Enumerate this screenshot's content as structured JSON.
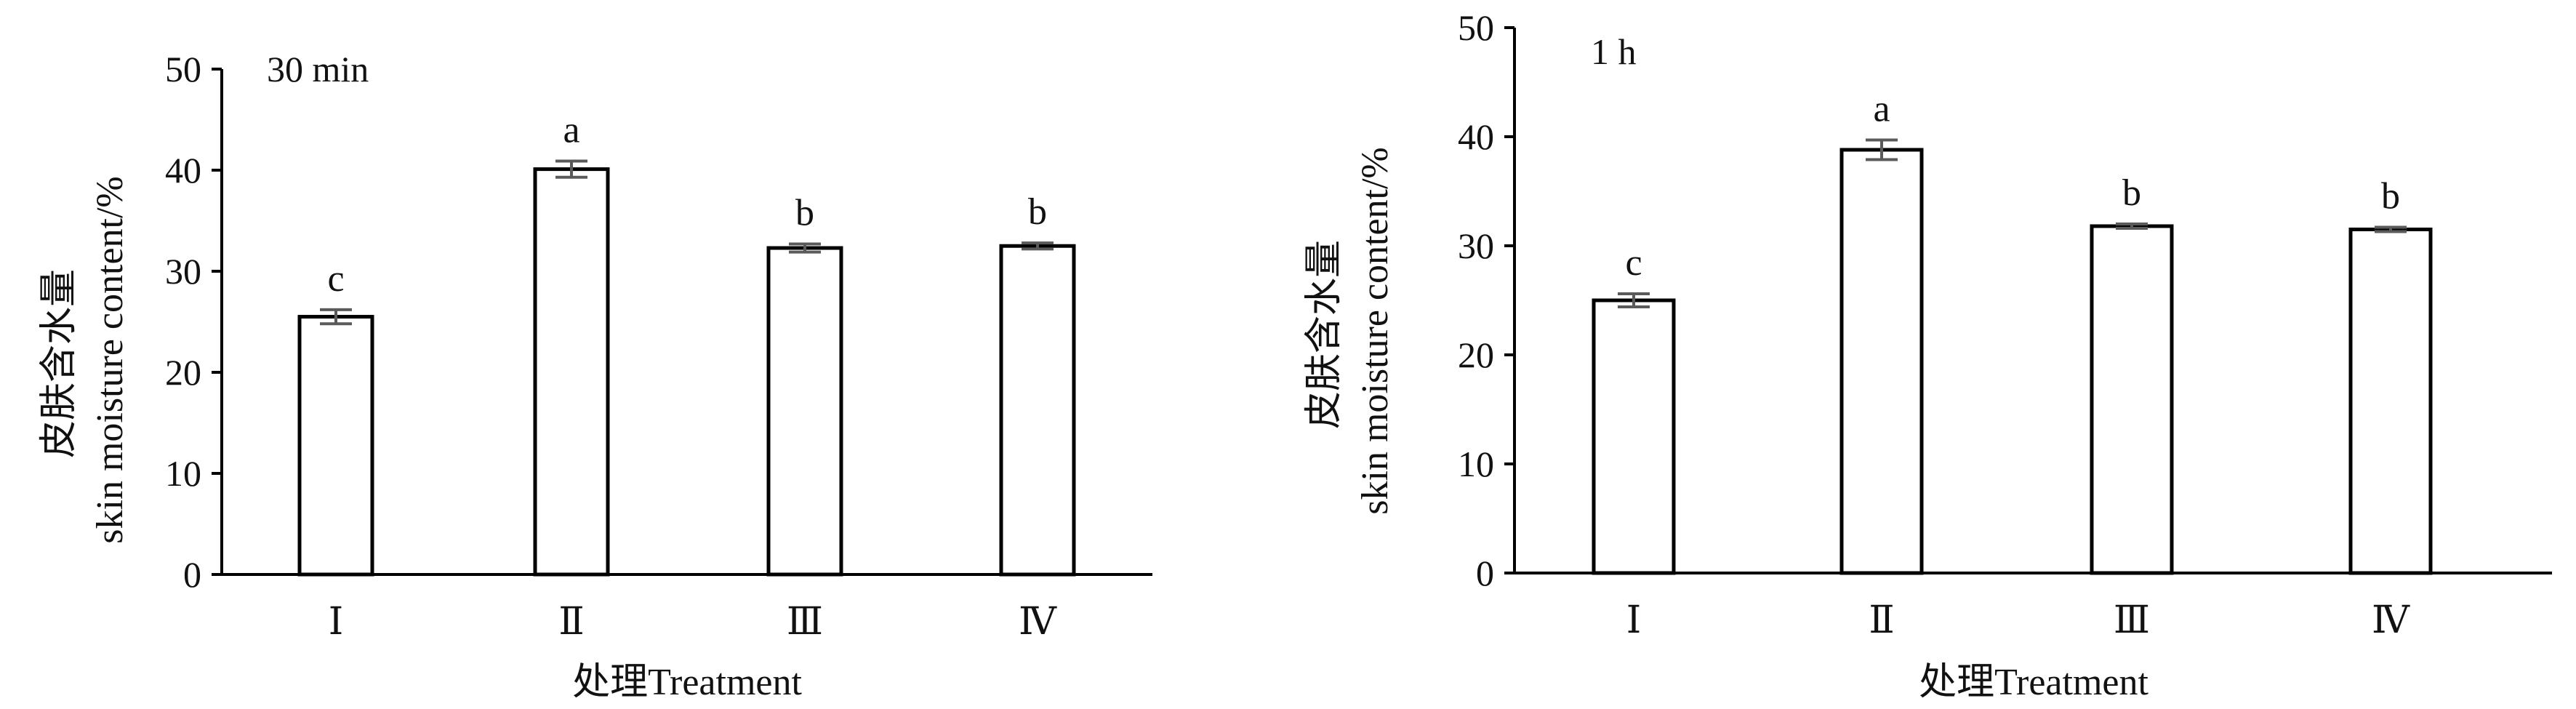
{
  "chart_data": [
    {
      "type": "bar",
      "panel_label": "30 min",
      "categories": [
        "Ⅰ",
        "Ⅱ",
        "Ⅲ",
        "Ⅳ"
      ],
      "values": [
        25.5,
        40.1,
        32.3,
        32.5
      ],
      "errors": [
        0.7,
        0.8,
        0.4,
        0.3
      ],
      "significance": [
        "c",
        "a",
        "b",
        "b"
      ],
      "ylabel_zh": "皮肤含水量",
      "ylabel_en": "skin moisture content/%",
      "xlabel": "处理Treatment",
      "ylim": [
        0,
        50
      ],
      "yticks": [
        "0",
        "10",
        "20",
        "30",
        "40",
        "50"
      ],
      "grid": false
    },
    {
      "type": "bar",
      "panel_label": "1 h",
      "categories": [
        "Ⅰ",
        "Ⅱ",
        "Ⅲ",
        "Ⅳ"
      ],
      "values": [
        25.0,
        38.8,
        31.8,
        31.5
      ],
      "errors": [
        0.6,
        0.9,
        0.2,
        0.2
      ],
      "significance": [
        "c",
        "a",
        "b",
        "b"
      ],
      "ylabel_zh": "皮肤含水量",
      "ylabel_en": "skin moisture content/%",
      "xlabel": "处理Treatment",
      "ylim": [
        0,
        50
      ],
      "yticks": [
        "0",
        "10",
        "20",
        "30",
        "40",
        "50"
      ],
      "grid": false
    }
  ]
}
